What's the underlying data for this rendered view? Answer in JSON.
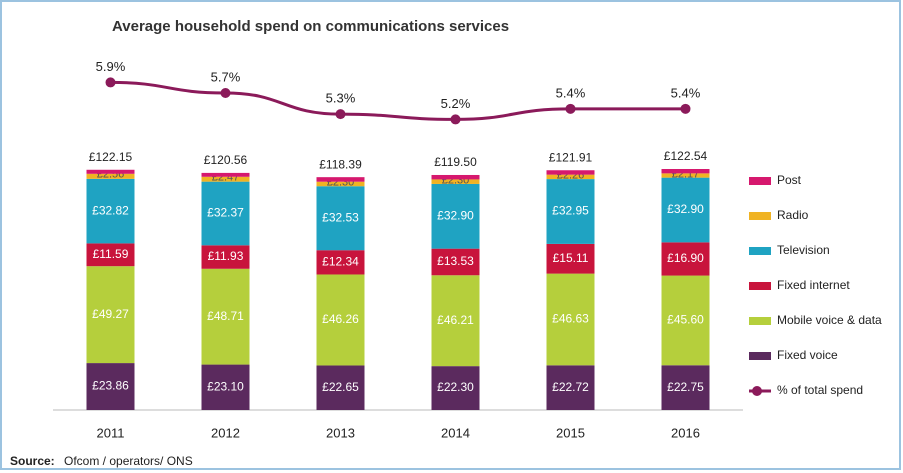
{
  "chart_data": {
    "type": "bar",
    "stacked": true,
    "title": "Average household spend on communications services",
    "categories": [
      "2011",
      "2012",
      "2013",
      "2014",
      "2015",
      "2016"
    ],
    "ylim": [
      0,
      180
    ],
    "y2lim": [
      -0.3,
      6.4
    ],
    "series": [
      {
        "name": "Fixed voice",
        "color": "#5b2a5e",
        "values": [
          23.86,
          23.1,
          22.65,
          22.3,
          22.72,
          22.75
        ],
        "value_labels": [
          "£23.86",
          "£23.10",
          "£22.65",
          "£22.30",
          "£22.72",
          "£22.75"
        ]
      },
      {
        "name": "Mobile voice & data",
        "color": "#b5cf3c",
        "values": [
          49.27,
          48.71,
          46.26,
          46.21,
          46.63,
          45.6
        ],
        "value_labels": [
          "£49.27",
          "£48.71",
          "£46.26",
          "£46.21",
          "£46.63",
          "£45.60"
        ]
      },
      {
        "name": "Fixed internet",
        "color": "#c8143c",
        "values": [
          11.59,
          11.93,
          12.34,
          13.53,
          15.11,
          16.9
        ],
        "value_labels": [
          "£11.59",
          "£11.93",
          "£12.34",
          "£13.53",
          "£15.11",
          "£16.90"
        ]
      },
      {
        "name": "Television",
        "color": "#1fa3c2",
        "values": [
          32.82,
          32.37,
          32.53,
          32.9,
          32.95,
          32.9
        ],
        "value_labels": [
          "£32.82",
          "£32.37",
          "£32.53",
          "£32.90",
          "£32.95",
          "£32.90"
        ]
      },
      {
        "name": "Radio",
        "color": "#f0b323",
        "values": [
          2.56,
          2.47,
          2.3,
          2.3,
          2.26,
          2.17
        ],
        "value_labels": [
          "£2.56",
          "£2.47",
          "£2.30",
          "£2.30",
          "£2.26",
          "£2.17"
        ]
      },
      {
        "name": "Post",
        "color": "#d6186e",
        "values": [
          2.05,
          1.98,
          2.31,
          2.26,
          2.24,
          2.22
        ]
      },
      {
        "name": "% of total spend",
        "type": "line",
        "axis": "y2",
        "color": "#8b1a5a",
        "values": [
          5.9,
          5.7,
          5.3,
          5.2,
          5.4,
          5.4
        ],
        "value_labels": [
          "5.9%",
          "5.7%",
          "5.3%",
          "5.2%",
          "5.4%",
          "5.4%"
        ]
      }
    ],
    "total_labels": [
      "£122.15",
      "£120.56",
      "£118.39",
      "£119.50",
      "£121.91",
      "£122.54"
    ],
    "source_label": "Source:",
    "source": "Ofcom / operators/ ONS"
  }
}
